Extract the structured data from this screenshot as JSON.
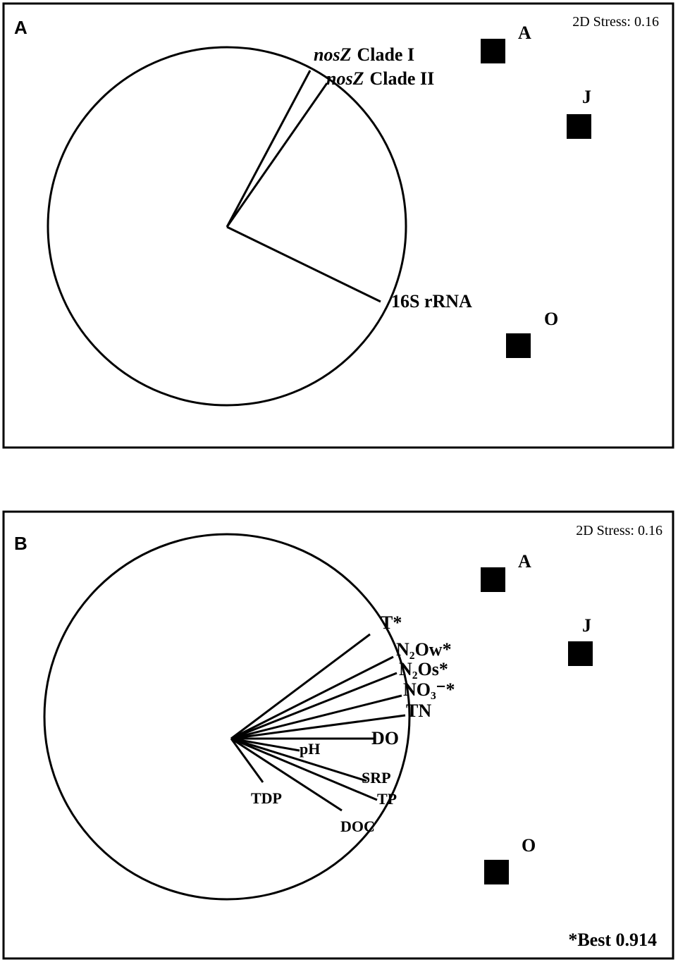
{
  "panels": [
    {
      "letter": "A",
      "stress": "2D Stress: 0.16",
      "samples": [
        "A",
        "J",
        "O"
      ],
      "vectors": [
        {
          "gene": "nosZ",
          "label": "Clade I"
        },
        {
          "gene": "nosZ",
          "label": "Clade II"
        },
        {
          "label": "16S rRNA"
        }
      ]
    },
    {
      "letter": "B",
      "stress": "2D Stress: 0.16",
      "samples": [
        "A",
        "J",
        "O"
      ],
      "vectors": [
        {
          "label": "T*"
        },
        {
          "label": "N₂Ow*"
        },
        {
          "label": "N₂Os*"
        },
        {
          "label": "NO₃⁻*"
        },
        {
          "label": "TN"
        },
        {
          "label": "DO"
        },
        {
          "label": "pH"
        },
        {
          "label": "SRP"
        },
        {
          "label": "TP"
        },
        {
          "label": "DOC"
        },
        {
          "label": "TDP"
        }
      ],
      "note": "*Best 0.914"
    }
  ]
}
